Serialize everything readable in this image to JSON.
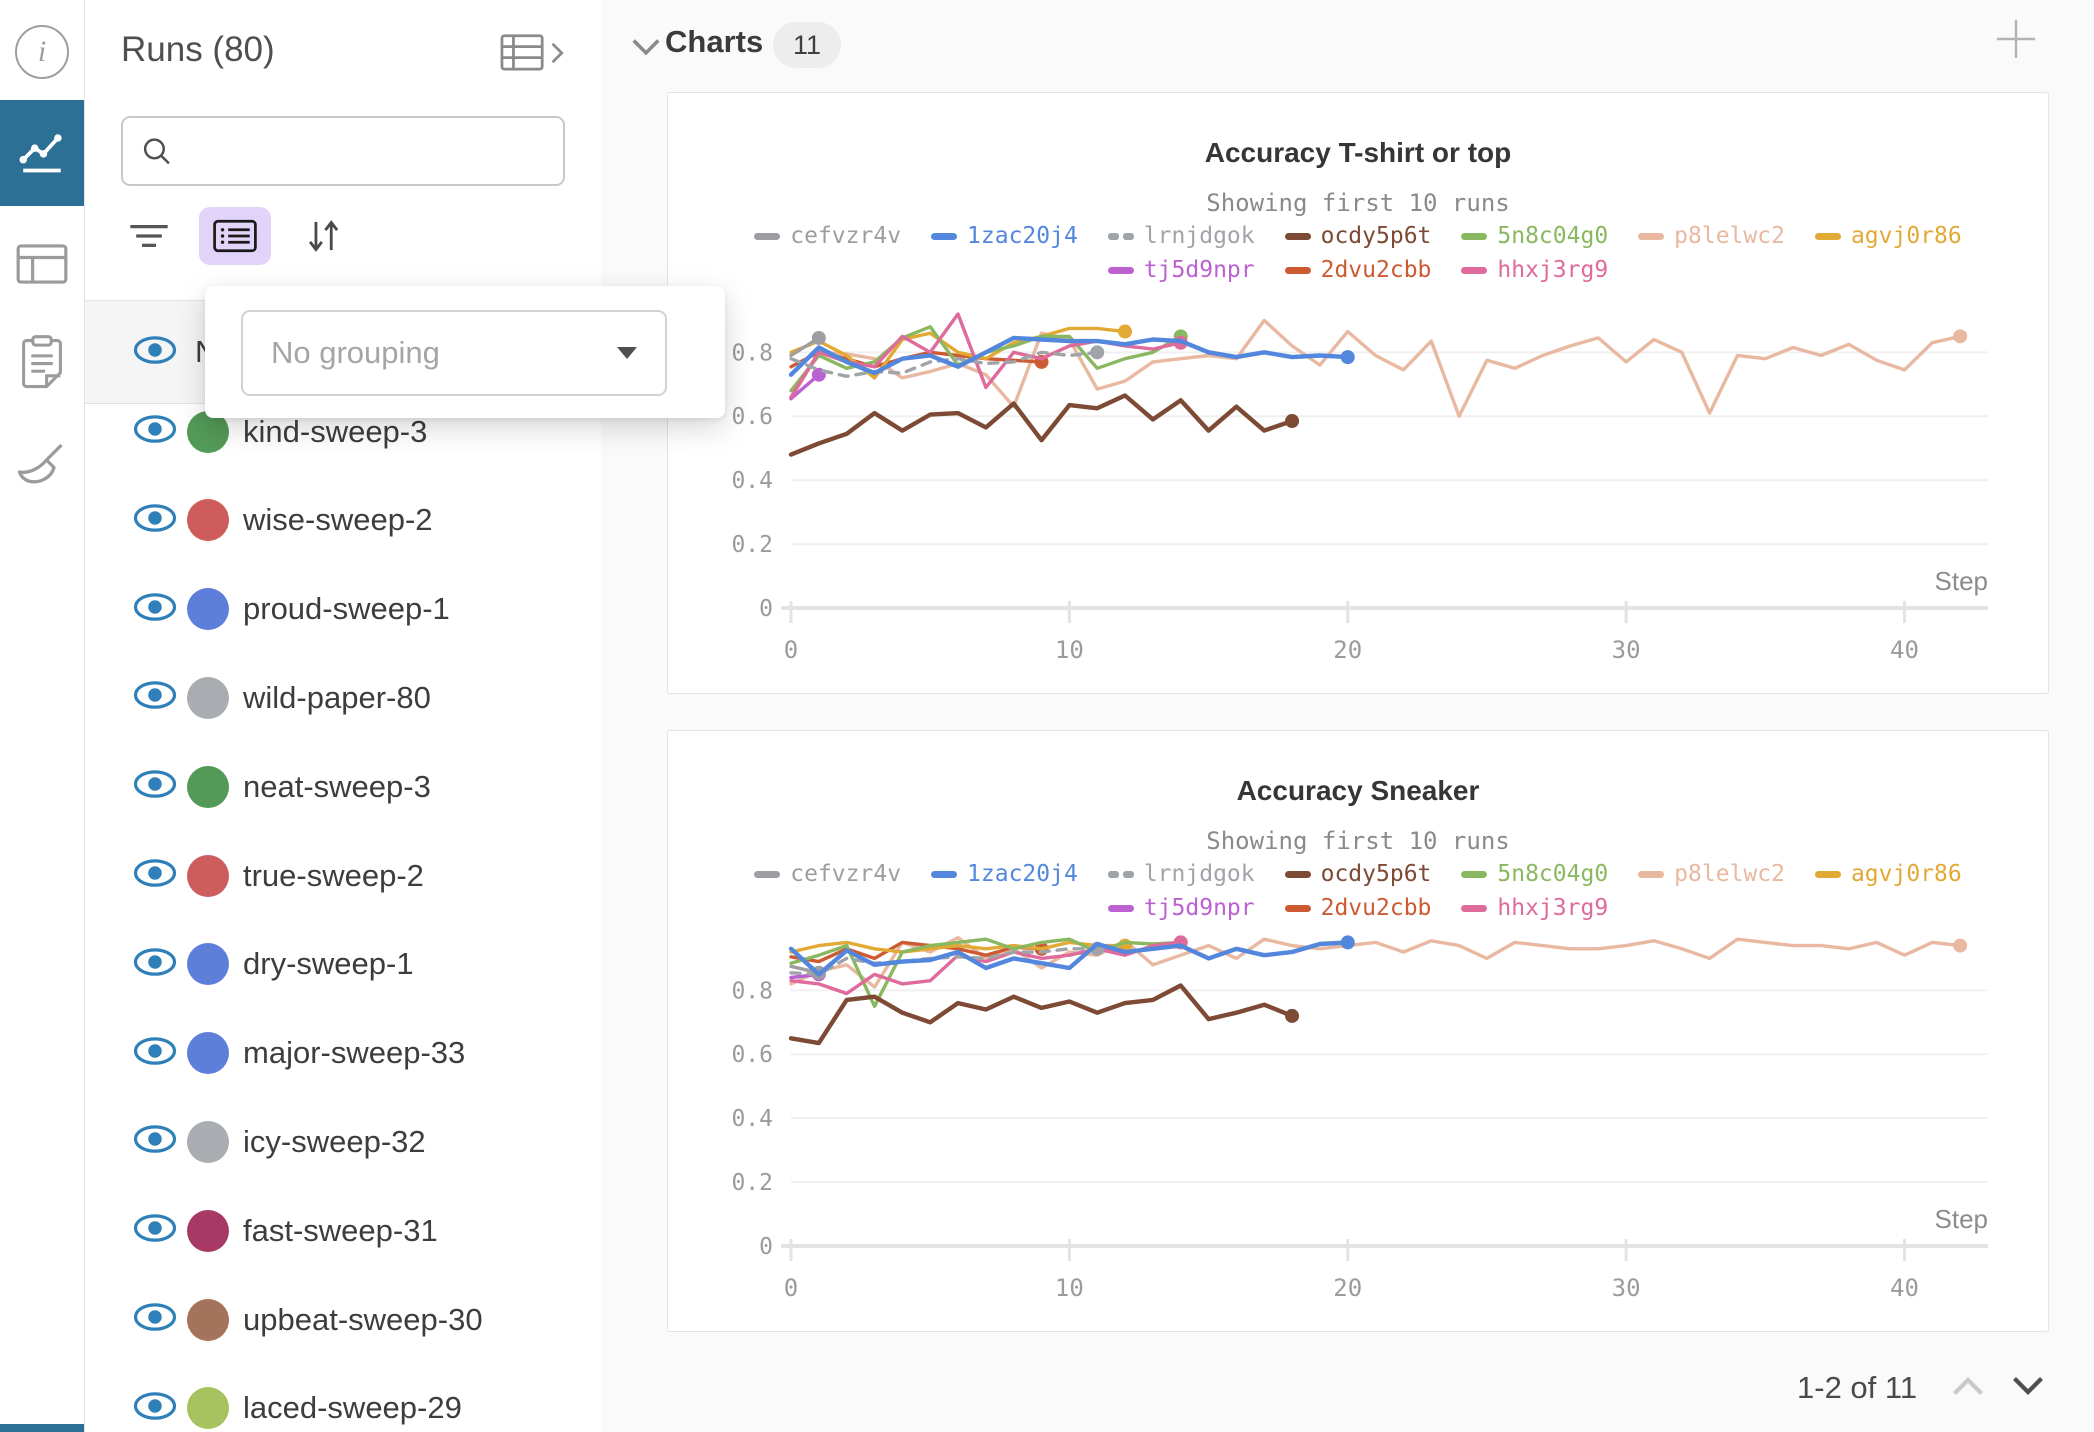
{
  "nav": {
    "items": [
      {
        "id": "info",
        "icon": "info-icon",
        "active": false
      },
      {
        "id": "charts",
        "icon": "line-chart-icon",
        "active": true
      },
      {
        "id": "tables",
        "icon": "table-icon",
        "active": false
      },
      {
        "id": "notes",
        "icon": "clipboard-icon",
        "active": false
      },
      {
        "id": "sweeps",
        "icon": "broom-icon",
        "active": false
      }
    ],
    "active_color": "#2d7095"
  },
  "sidebar": {
    "title": "Runs (80)",
    "search": {
      "value": "",
      "placeholder": ""
    },
    "toolbar": {
      "filter_icon": "filter-icon",
      "list_icon": "list-settings-icon",
      "sort_icon": "sort-icon",
      "active_button_bg": "#e2d3f9"
    },
    "grouping": {
      "value": "No grouping"
    },
    "header_row": {
      "label": "Name"
    },
    "eye_color": "#2f80b9",
    "runs": [
      {
        "name": "kind-sweep-3",
        "color": "#539a58"
      },
      {
        "name": "wise-sweep-2",
        "color": "#ce5c5c"
      },
      {
        "name": "proud-sweep-1",
        "color": "#5d7fd9"
      },
      {
        "name": "wild-paper-80",
        "color": "#a9adb2"
      },
      {
        "name": "neat-sweep-3",
        "color": "#539a58"
      },
      {
        "name": "true-sweep-2",
        "color": "#ce5c5c"
      },
      {
        "name": "dry-sweep-1",
        "color": "#5d7fd9"
      },
      {
        "name": "major-sweep-33",
        "color": "#5d7fd9"
      },
      {
        "name": "icy-sweep-32",
        "color": "#a9adb2"
      },
      {
        "name": "fast-sweep-31",
        "color": "#a63a65"
      },
      {
        "name": "upbeat-sweep-30",
        "color": "#a5725c"
      },
      {
        "name": "laced-sweep-29",
        "color": "#a7c35f"
      }
    ]
  },
  "main": {
    "header": {
      "title": "Charts",
      "count": "11"
    },
    "pagination": {
      "label": "1-2 of 11"
    }
  },
  "chart_data": [
    {
      "type": "line",
      "title": "Accuracy T-shirt or top",
      "subtitle": "Showing first 10 runs",
      "xlabel": "Step",
      "ylabel": "",
      "xlim": [
        0,
        43
      ],
      "ylim": [
        0,
        0.97
      ],
      "xticks": [
        0,
        10,
        20,
        30,
        40
      ],
      "yticks": [
        0,
        0.2,
        0.4,
        0.6,
        0.8
      ],
      "grid": true,
      "legend_rows": [
        7,
        3
      ],
      "series": [
        {
          "name": "cefvzr4v",
          "color": "#9e9ea2",
          "dash": false,
          "y": [
            0.79,
            0.845
          ]
        },
        {
          "name": "1zac20j4",
          "color": "#5387dd",
          "dash": false,
          "y": [
            0.73,
            0.815,
            0.77,
            0.735,
            0.78,
            0.79,
            0.755,
            0.8,
            0.845,
            0.84,
            0.835,
            0.835,
            0.825,
            0.84,
            0.835,
            0.8,
            0.785,
            0.8,
            0.785,
            0.79,
            0.785
          ]
        },
        {
          "name": "lrnjdgok",
          "color": "#a0a4a8",
          "dash": true,
          "y": [
            0.78,
            0.745,
            0.725,
            0.74,
            0.735,
            0.77,
            0.78,
            0.765,
            0.77,
            0.8,
            0.79,
            0.8
          ]
        },
        {
          "name": "ocdy5p6t",
          "color": "#7d4a35",
          "dash": false,
          "y": [
            0.48,
            0.515,
            0.545,
            0.61,
            0.555,
            0.605,
            0.61,
            0.565,
            0.64,
            0.525,
            0.635,
            0.625,
            0.665,
            0.59,
            0.65,
            0.555,
            0.63,
            0.555,
            0.585
          ]
        },
        {
          "name": "5n8c04g0",
          "color": "#8ab860",
          "dash": false,
          "y": [
            0.68,
            0.79,
            0.75,
            0.77,
            0.845,
            0.88,
            0.76,
            0.8,
            0.82,
            0.85,
            0.85,
            0.75,
            0.78,
            0.8,
            0.85
          ]
        },
        {
          "name": "p8lelwc2",
          "color": "#e9b8a0",
          "dash": false,
          "y": [
            0.655,
            0.8,
            0.795,
            0.78,
            0.72,
            0.74,
            0.765,
            0.73,
            0.63,
            0.86,
            0.84,
            0.685,
            0.71,
            0.77,
            0.78,
            0.79,
            0.78,
            0.9,
            0.82,
            0.76,
            0.865,
            0.79,
            0.745,
            0.835,
            0.6,
            0.775,
            0.75,
            0.79,
            0.82,
            0.845,
            0.77,
            0.84,
            0.8,
            0.61,
            0.79,
            0.78,
            0.815,
            0.79,
            0.825,
            0.775,
            0.745,
            0.83,
            0.85
          ]
        },
        {
          "name": "agvj0r86",
          "color": "#e2a935",
          "dash": false,
          "y": [
            0.8,
            0.835,
            0.79,
            0.72,
            0.84,
            0.86,
            0.8,
            0.78,
            0.83,
            0.85,
            0.875,
            0.875,
            0.865
          ]
        },
        {
          "name": "tj5d9npr",
          "color": "#bc61d2",
          "dash": false,
          "y": [
            0.655,
            0.73
          ]
        },
        {
          "name": "2dvu2cbb",
          "color": "#cc5b33",
          "dash": false,
          "y": [
            0.755,
            0.8,
            0.78,
            0.755,
            0.78,
            0.8,
            0.79,
            0.78,
            0.775,
            0.77
          ]
        },
        {
          "name": "hhxj3rg9",
          "color": "#df6a9c",
          "dash": false,
          "y": [
            0.66,
            0.8,
            0.77,
            0.755,
            0.85,
            0.8,
            0.92,
            0.69,
            0.8,
            0.78,
            0.82,
            0.835,
            0.82,
            0.81,
            0.83
          ]
        }
      ]
    },
    {
      "type": "line",
      "title": "Accuracy Sneaker",
      "subtitle": "Showing first 10 runs",
      "xlabel": "Step",
      "ylabel": "",
      "xlim": [
        0,
        43
      ],
      "ylim": [
        0,
        0.97
      ],
      "xticks": [
        0,
        10,
        20,
        30,
        40
      ],
      "yticks": [
        0,
        0.2,
        0.4,
        0.6,
        0.8
      ],
      "grid": true,
      "legend_rows": [
        7,
        3
      ],
      "series": [
        {
          "name": "cefvzr4v",
          "color": "#9e9ea2",
          "dash": false,
          "y": [
            0.875,
            0.855
          ]
        },
        {
          "name": "1zac20j4",
          "color": "#5387dd",
          "dash": false,
          "y": [
            0.93,
            0.85,
            0.925,
            0.88,
            0.89,
            0.895,
            0.92,
            0.87,
            0.9,
            0.885,
            0.87,
            0.945,
            0.92,
            0.93,
            0.94,
            0.9,
            0.93,
            0.91,
            0.92,
            0.945,
            0.95
          ]
        },
        {
          "name": "lrnjdgok",
          "color": "#a0a4a8",
          "dash": true,
          "y": [
            0.855,
            0.85,
            0.9,
            0.885,
            0.89,
            0.9,
            0.905,
            0.9,
            0.92,
            0.92,
            0.93,
            0.93
          ]
        },
        {
          "name": "ocdy5p6t",
          "color": "#7d4a35",
          "dash": false,
          "y": [
            0.65,
            0.635,
            0.77,
            0.78,
            0.73,
            0.7,
            0.76,
            0.74,
            0.78,
            0.745,
            0.765,
            0.73,
            0.76,
            0.77,
            0.815,
            0.71,
            0.73,
            0.755,
            0.72
          ]
        },
        {
          "name": "5n8c04g0",
          "color": "#8ab860",
          "dash": false,
          "y": [
            0.885,
            0.91,
            0.94,
            0.75,
            0.92,
            0.94,
            0.95,
            0.96,
            0.93,
            0.95,
            0.96,
            0.92,
            0.95,
            0.945,
            0.95
          ]
        },
        {
          "name": "p8lelwc2",
          "color": "#e9b8a0",
          "dash": false,
          "y": [
            0.82,
            0.86,
            0.88,
            0.81,
            0.95,
            0.92,
            0.965,
            0.9,
            0.93,
            0.87,
            0.92,
            0.91,
            0.955,
            0.88,
            0.91,
            0.94,
            0.9,
            0.96,
            0.94,
            0.93,
            0.94,
            0.95,
            0.92,
            0.955,
            0.94,
            0.9,
            0.95,
            0.94,
            0.93,
            0.93,
            0.94,
            0.955,
            0.93,
            0.9,
            0.96,
            0.95,
            0.94,
            0.94,
            0.93,
            0.95,
            0.91,
            0.95,
            0.94
          ]
        },
        {
          "name": "agvj0r86",
          "color": "#e2a935",
          "dash": false,
          "y": [
            0.92,
            0.94,
            0.95,
            0.93,
            0.92,
            0.93,
            0.94,
            0.93,
            0.94,
            0.93,
            0.95,
            0.94,
            0.94
          ]
        },
        {
          "name": "tj5d9npr",
          "color": "#bc61d2",
          "dash": false,
          "y": [
            0.84,
            0.85
          ]
        },
        {
          "name": "2dvu2cbb",
          "color": "#cc5b33",
          "dash": false,
          "y": [
            0.905,
            0.89,
            0.93,
            0.9,
            0.95,
            0.94,
            0.93,
            0.91,
            0.935,
            0.93
          ]
        },
        {
          "name": "hhxj3rg9",
          "color": "#df6a9c",
          "dash": false,
          "y": [
            0.83,
            0.82,
            0.79,
            0.85,
            0.82,
            0.83,
            0.91,
            0.89,
            0.92,
            0.9,
            0.91,
            0.93,
            0.91,
            0.94,
            0.95
          ]
        }
      ]
    }
  ]
}
